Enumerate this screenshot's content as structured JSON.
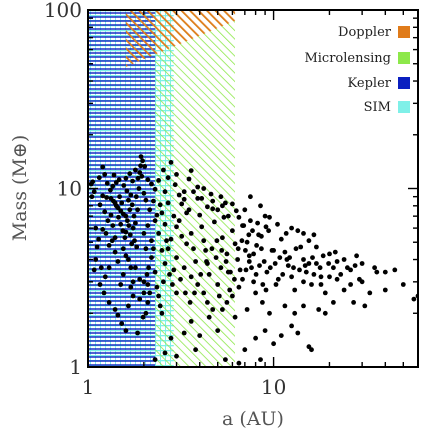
{
  "chart_data": {
    "type": "scatter",
    "xlabel": "a (AU)",
    "ylabel": "Mass (M⊕)",
    "x_scale": "log",
    "y_scale": "log",
    "xlim": [
      1,
      60
    ],
    "ylim": [
      1,
      100
    ],
    "x_ticks": [
      {
        "value": 1,
        "label": "1"
      },
      {
        "value": 10,
        "label": "10"
      }
    ],
    "y_ticks": [
      {
        "value": 1,
        "label": "1"
      },
      {
        "value": 10,
        "label": "10"
      },
      {
        "value": 100,
        "label": "100"
      }
    ],
    "grid": false,
    "legend_position": "top-right",
    "legend": [
      {
        "key": "doppler",
        "label": "Doppler",
        "color": "#e07b1a"
      },
      {
        "key": "microlensing",
        "label": "Microlensing",
        "color": "#8de84a"
      },
      {
        "key": "kepler",
        "label": "Kepler",
        "color": "#0a1fc0"
      },
      {
        "key": "sim",
        "label": "SIM",
        "color": "#7ff0e8"
      }
    ],
    "regions": [
      {
        "key": "kepler",
        "x": [
          1,
          2.3
        ],
        "y": [
          1,
          100
        ]
      },
      {
        "key": "sim",
        "x": [
          1,
          2.9
        ],
        "y": [
          1,
          100
        ]
      },
      {
        "key": "microlensing",
        "x": [
          2.3,
          6.2
        ],
        "y": [
          1,
          100
        ]
      },
      {
        "key": "doppler",
        "polygon": [
          [
            1.6,
            100
          ],
          [
            1.6,
            48
          ],
          [
            6.2,
            87
          ],
          [
            6.2,
            100
          ]
        ]
      }
    ],
    "points": [
      [
        1.04,
        10.6
      ],
      [
        1.06,
        10.9
      ],
      [
        1.08,
        9.6
      ],
      [
        1.05,
        9.0
      ],
      [
        1.15,
        11.5
      ],
      [
        1.2,
        13.2
      ],
      [
        1.23,
        12.0
      ],
      [
        1.27,
        10.7
      ],
      [
        1.33,
        8.8
      ],
      [
        1.37,
        8.5
      ],
      [
        1.38,
        11.9
      ],
      [
        1.4,
        8.3
      ],
      [
        1.42,
        8.0
      ],
      [
        1.45,
        7.8
      ],
      [
        1.46,
        6.9
      ],
      [
        1.48,
        9.0
      ],
      [
        1.5,
        7.5
      ],
      [
        1.5,
        6.3
      ],
      [
        1.52,
        8.3
      ],
      [
        1.54,
        5.8
      ],
      [
        1.55,
        7.2
      ],
      [
        1.58,
        5.3
      ],
      [
        1.6,
        7.0
      ],
      [
        1.62,
        9.7
      ],
      [
        1.63,
        6.6
      ],
      [
        1.65,
        8.6
      ],
      [
        1.66,
        6.2
      ],
      [
        1.68,
        7.6
      ],
      [
        1.69,
        5.5
      ],
      [
        1.7,
        9.2
      ],
      [
        1.72,
        4.9
      ],
      [
        1.73,
        8.1
      ],
      [
        1.75,
        6.0
      ],
      [
        1.77,
        7.0
      ],
      [
        1.78,
        5.1
      ],
      [
        1.8,
        6.4
      ],
      [
        1.82,
        9.0
      ],
      [
        1.83,
        4.7
      ],
      [
        1.85,
        7.6
      ],
      [
        1.88,
        10.0
      ],
      [
        1.9,
        12.3
      ],
      [
        1.92,
        13.4
      ],
      [
        1.95,
        11.7
      ],
      [
        2.0,
        9.4
      ],
      [
        2.05,
        8.6
      ],
      [
        1.97,
        14.3
      ],
      [
        1.93,
        15.1
      ],
      [
        2.02,
        13.3
      ],
      [
        1.6,
        4.2
      ],
      [
        1.65,
        4.0
      ],
      [
        1.7,
        3.6
      ],
      [
        1.75,
        3.0
      ],
      [
        1.55,
        3.3
      ],
      [
        1.5,
        2.9
      ],
      [
        1.45,
        3.9
      ],
      [
        1.4,
        4.4
      ],
      [
        1.35,
        5.1
      ],
      [
        1.3,
        4.8
      ],
      [
        1.25,
        5.6
      ],
      [
        1.2,
        5.9
      ],
      [
        1.28,
        6.6
      ],
      [
        1.33,
        7.1
      ],
      [
        1.1,
        6.0
      ],
      [
        1.12,
        4.7
      ],
      [
        1.18,
        3.6
      ],
      [
        1.22,
        2.6
      ],
      [
        1.3,
        2.3
      ],
      [
        1.4,
        2.1
      ],
      [
        1.45,
        1.95
      ],
      [
        1.52,
        1.75
      ],
      [
        1.6,
        1.6
      ],
      [
        1.85,
        1.55
      ],
      [
        1.98,
        1.9
      ],
      [
        2.05,
        2.0
      ],
      [
        2.1,
        2.3
      ],
      [
        2.15,
        2.6
      ],
      [
        2.0,
        3.0
      ],
      [
        2.08,
        3.3
      ],
      [
        2.12,
        3.6
      ],
      [
        2.2,
        4.1
      ],
      [
        2.3,
        3.4
      ],
      [
        2.35,
        2.8
      ],
      [
        2.4,
        2.5
      ],
      [
        2.45,
        2.2
      ],
      [
        2.5,
        2.0
      ],
      [
        2.55,
        3.0
      ],
      [
        2.6,
        3.8
      ],
      [
        2.7,
        4.6
      ],
      [
        2.8,
        5.2
      ],
      [
        2.9,
        3.5
      ],
      [
        3.0,
        2.6
      ],
      [
        3.1,
        6.6
      ],
      [
        3.2,
        8.2
      ],
      [
        3.3,
        9.6
      ],
      [
        3.4,
        7.3
      ],
      [
        3.5,
        11.3
      ],
      [
        3.6,
        5.6
      ],
      [
        3.7,
        4.6
      ],
      [
        3.8,
        3.9
      ],
      [
        3.9,
        8.8
      ],
      [
        4.0,
        7.1
      ],
      [
        4.1,
        6.1
      ],
      [
        4.2,
        5.1
      ],
      [
        4.3,
        4.5
      ],
      [
        4.4,
        3.8
      ],
      [
        4.5,
        3.3
      ],
      [
        4.6,
        9.3
      ],
      [
        4.7,
        7.7
      ],
      [
        4.8,
        6.5
      ],
      [
        4.9,
        4.1
      ],
      [
        5.0,
        2.9
      ],
      [
        5.1,
        2.5
      ],
      [
        5.2,
        3.6
      ],
      [
        5.3,
        5.3
      ],
      [
        5.4,
        6.9
      ],
      [
        5.5,
        8.3
      ],
      [
        5.6,
        4.3
      ],
      [
        5.7,
        3.4
      ],
      [
        5.8,
        2.7
      ],
      [
        6.0,
        5.8
      ],
      [
        6.2,
        4.9
      ],
      [
        6.4,
        4.0
      ],
      [
        6.6,
        3.5
      ],
      [
        6.8,
        6.2
      ],
      [
        7.0,
        7.6
      ],
      [
        7.2,
        5.0
      ],
      [
        7.4,
        4.2
      ],
      [
        7.6,
        3.6
      ],
      [
        7.8,
        3.0
      ],
      [
        8.0,
        2.6
      ],
      [
        8.3,
        5.5
      ],
      [
        8.6,
        4.6
      ],
      [
        8.9,
        3.9
      ],
      [
        9.2,
        3.4
      ],
      [
        9.5,
        6.9
      ],
      [
        9.8,
        4.5
      ],
      [
        10.2,
        3.8
      ],
      [
        10.6,
        3.1
      ],
      [
        11.0,
        5.2
      ],
      [
        11.5,
        4.4
      ],
      [
        12.0,
        3.7
      ],
      [
        12.5,
        3.2
      ],
      [
        13.0,
        2.7
      ],
      [
        13.5,
        5.8
      ],
      [
        14.0,
        4.7
      ],
      [
        14.5,
        4.0
      ],
      [
        15.0,
        3.4
      ],
      [
        16.0,
        2.9
      ],
      [
        17.0,
        3.8
      ],
      [
        18.0,
        3.2
      ],
      [
        19.0,
        2.6
      ],
      [
        20.0,
        4.3
      ],
      [
        21.0,
        3.6
      ],
      [
        22.0,
        3.1
      ],
      [
        24.0,
        2.7
      ],
      [
        26.0,
        3.5
      ],
      [
        28.0,
        4.2
      ],
      [
        30.0,
        3.0
      ],
      [
        33.0,
        2.6
      ],
      [
        36.0,
        3.4
      ],
      [
        40.0,
        2.7
      ],
      [
        45.0,
        3.5
      ],
      [
        50.0,
        2.9
      ],
      [
        57.0,
        2.4
      ],
      [
        10.0,
        1.35
      ],
      [
        11.0,
        1.5
      ],
      [
        9.0,
        1.6
      ],
      [
        8.0,
        1.45
      ],
      [
        13.5,
        1.55
      ],
      [
        12.5,
        1.7
      ],
      [
        15.5,
        1.3
      ],
      [
        7.0,
        1.25
      ],
      [
        16.0,
        1.25
      ],
      [
        6.2,
        1.9
      ],
      [
        7.2,
        2.1
      ],
      [
        8.7,
        2.3
      ],
      [
        9.5,
        2.0
      ],
      [
        11.5,
        2.2
      ],
      [
        5.0,
        1.6
      ],
      [
        4.0,
        1.5
      ],
      [
        3.3,
        1.55
      ],
      [
        2.8,
        1.45
      ],
      [
        3.6,
        1.8
      ],
      [
        4.5,
        1.9
      ],
      [
        3.6,
        12.6
      ],
      [
        3.0,
        12.0
      ],
      [
        2.6,
        9.6
      ],
      [
        2.8,
        14.0
      ],
      [
        4.2,
        10.0
      ],
      [
        5.2,
        9.0
      ],
      [
        6.0,
        8.2
      ],
      [
        6.5,
        6.9
      ],
      [
        7.5,
        9.0
      ],
      [
        8.5,
        8.0
      ],
      [
        9.0,
        7.0
      ],
      [
        10.5,
        6.3
      ],
      [
        11.7,
        5.6
      ],
      [
        12.5,
        6.0
      ],
      [
        14.5,
        5.6
      ],
      [
        15.5,
        5.1
      ],
      [
        17.0,
        4.7
      ],
      [
        16.5,
        5.5
      ],
      [
        18.5,
        4.2
      ],
      [
        22.0,
        3.9
      ],
      [
        25.0,
        3.6
      ],
      [
        30.0,
        3.8
      ],
      [
        35.0,
        3.6
      ],
      [
        40.0,
        3.4
      ],
      [
        60.0,
        2.5
      ],
      [
        31.0,
        2.2
      ],
      [
        27.0,
        2.3
      ],
      [
        21.0,
        2.3
      ],
      [
        19.0,
        2.0
      ],
      [
        17.5,
        2.1
      ],
      [
        14.5,
        2.2
      ],
      [
        13.0,
        2.0
      ],
      [
        2.2,
        5.1
      ],
      [
        2.3,
        6.6
      ],
      [
        2.4,
        5.6
      ],
      [
        2.6,
        6.3
      ],
      [
        2.5,
        7.3
      ],
      [
        2.7,
        8.3
      ],
      [
        2.9,
        7.0
      ],
      [
        3.0,
        6.1
      ],
      [
        3.2,
        5.4
      ],
      [
        3.4,
        4.9
      ],
      [
        3.0,
        4.1
      ],
      [
        3.3,
        3.6
      ],
      [
        3.6,
        3.2
      ],
      [
        3.9,
        2.9
      ],
      [
        4.2,
        2.6
      ],
      [
        4.4,
        2.3
      ],
      [
        4.7,
        2.1
      ],
      [
        5.3,
        2.1
      ],
      [
        5.6,
        2.3
      ],
      [
        6.0,
        2.5
      ],
      [
        6.5,
        2.8
      ],
      [
        6.8,
        3.1
      ],
      [
        7.1,
        3.5
      ],
      [
        7.4,
        3.9
      ],
      [
        7.8,
        4.3
      ],
      [
        8.1,
        4.8
      ],
      [
        8.6,
        5.4
      ],
      [
        9.4,
        5.8
      ],
      [
        10.0,
        4.5
      ],
      [
        10.8,
        4.1
      ],
      [
        11.8,
        4.0
      ],
      [
        12.8,
        3.6
      ],
      [
        13.8,
        3.5
      ],
      [
        14.5,
        3.0
      ],
      [
        15.5,
        3.8
      ],
      [
        16.5,
        3.3
      ],
      [
        18.0,
        2.9
      ],
      [
        20.0,
        3.2
      ],
      [
        23.0,
        3.3
      ],
      [
        26.0,
        2.9
      ],
      [
        29.0,
        3.1
      ],
      [
        2.3,
        1.1
      ],
      [
        2.6,
        1.2
      ],
      [
        3.0,
        1.15
      ],
      [
        3.8,
        1.25
      ],
      [
        5.5,
        1.1
      ],
      [
        6.5,
        1.05
      ],
      [
        8.5,
        1.1
      ],
      [
        1.9,
        2.4
      ],
      [
        1.9,
        3.1
      ],
      [
        1.8,
        3.6
      ],
      [
        1.7,
        2.8
      ],
      [
        1.65,
        2.2
      ],
      [
        1.75,
        2.5
      ],
      [
        2.0,
        2.6
      ],
      [
        2.1,
        2.9
      ],
      [
        1.55,
        4.6
      ],
      [
        1.6,
        5.7
      ],
      [
        1.4,
        5.3
      ],
      [
        1.36,
        6.2
      ],
      [
        1.3,
        3.6
      ],
      [
        1.24,
        3.2
      ],
      [
        1.16,
        2.9
      ],
      [
        1.1,
        4.0
      ],
      [
        1.08,
        3.5
      ],
      [
        1.14,
        5.2
      ],
      [
        1.23,
        7.4
      ],
      [
        1.16,
        8.1
      ],
      [
        1.2,
        9.1
      ],
      [
        1.26,
        8.9
      ],
      [
        1.32,
        9.8
      ],
      [
        1.36,
        10.3
      ],
      [
        1.42,
        10.8
      ],
      [
        1.47,
        11.2
      ],
      [
        1.56,
        10.4
      ],
      [
        1.6,
        11.4
      ],
      [
        1.68,
        12.1
      ],
      [
        1.74,
        11.0
      ],
      [
        1.8,
        12.7
      ],
      [
        1.86,
        11.4
      ],
      [
        2.1,
        11.2
      ],
      [
        2.2,
        10.6
      ],
      [
        2.3,
        9.9
      ],
      [
        2.4,
        11.1
      ],
      [
        2.55,
        12.7
      ],
      [
        2.7,
        11.5
      ],
      [
        2.95,
        10.5
      ],
      [
        3.1,
        9.2
      ],
      [
        3.3,
        8.7
      ],
      [
        3.5,
        7.6
      ],
      [
        3.7,
        9.6
      ],
      [
        3.9,
        10.2
      ],
      [
        4.1,
        8.8
      ],
      [
        4.4,
        7.9
      ],
      [
        4.7,
        8.5
      ],
      [
        5.0,
        7.6
      ],
      [
        5.3,
        8.0
      ],
      [
        5.7,
        7.0
      ],
      [
        6.3,
        7.5
      ],
      [
        6.9,
        6.2
      ],
      [
        7.5,
        6.6
      ],
      [
        8.2,
        6.4
      ],
      [
        9.1,
        6.1
      ],
      [
        2.15,
        7.6
      ],
      [
        2.25,
        8.5
      ],
      [
        2.35,
        7.1
      ],
      [
        2.45,
        8.1
      ],
      [
        2.1,
        6.2
      ],
      [
        2.0,
        5.6
      ],
      [
        2.05,
        4.6
      ],
      [
        2.25,
        4.6
      ],
      [
        2.5,
        4.5
      ],
      [
        2.65,
        5.1
      ],
      [
        2.75,
        3.3
      ],
      [
        2.85,
        2.9
      ],
      [
        3.15,
        3.1
      ],
      [
        3.35,
        2.6
      ],
      [
        3.55,
        2.3
      ],
      [
        3.75,
        2.6
      ],
      [
        4.05,
        3.3
      ],
      [
        4.35,
        3.9
      ],
      [
        4.65,
        4.6
      ],
      [
        4.95,
        5.1
      ],
      [
        5.25,
        4.5
      ],
      [
        5.55,
        3.9
      ],
      [
        5.85,
        3.4
      ],
      [
        6.15,
        3.1
      ],
      [
        6.45,
        4.6
      ],
      [
        6.75,
        5.1
      ],
      [
        7.05,
        4.5
      ],
      [
        7.35,
        5.5
      ],
      [
        7.7,
        5.8
      ],
      [
        8.05,
        3.3
      ],
      [
        8.4,
        3.7
      ],
      [
        8.75,
        2.9
      ],
      [
        9.1,
        2.7
      ],
      [
        9.6,
        3.6
      ],
      [
        10.3,
        2.9
      ],
      [
        11.2,
        3.3
      ],
      [
        12.2,
        4.1
      ],
      [
        13.2,
        4.6
      ],
      [
        14.8,
        3.7
      ],
      [
        16.2,
        4.1
      ],
      [
        17.8,
        3.6
      ],
      [
        19.8,
        3.8
      ],
      [
        21.5,
        4.4
      ],
      [
        24.0,
        4.0
      ],
      [
        27.5,
        3.7
      ]
    ]
  }
}
